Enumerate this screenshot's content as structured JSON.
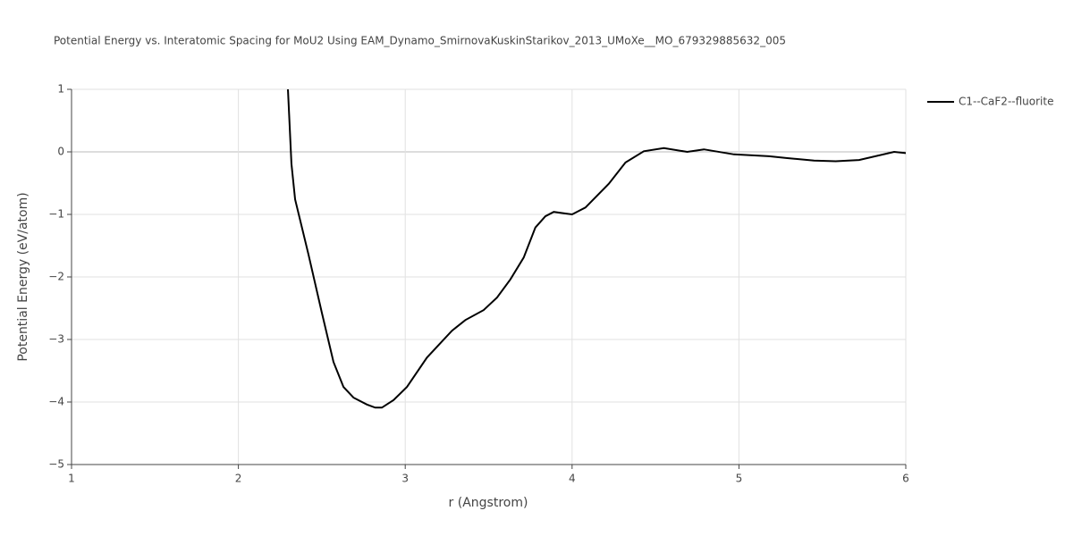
{
  "chart_data": {
    "type": "line",
    "title": "Potential Energy vs. Interatomic Spacing for MoU2 Using EAM_Dynamo_SmirnovaKuskinStarikov_2013_UMoXe__MO_679329885632_005",
    "x_label": "r (Angstrom)",
    "y_label": "Potential Energy (eV/atom)",
    "xlim": [
      1,
      6
    ],
    "ylim": [
      -5,
      1
    ],
    "xticks": [
      1,
      2,
      3,
      4,
      5,
      6
    ],
    "yticks": [
      {
        "value": -5,
        "label": "−5"
      },
      {
        "value": -4,
        "label": "−4"
      },
      {
        "value": -3,
        "label": "−3"
      },
      {
        "value": -2,
        "label": "−2"
      },
      {
        "value": -1,
        "label": "−1"
      },
      0,
      1
    ],
    "grid": true,
    "legend": "top-right",
    "x": [
      2.297,
      2.318,
      2.34,
      2.42,
      2.5,
      2.57,
      2.63,
      2.69,
      2.77,
      2.82,
      2.86,
      2.93,
      3.01,
      3.13,
      3.28,
      3.36,
      3.47,
      3.55,
      3.63,
      3.71,
      3.78,
      3.84,
      3.89,
      4.0,
      4.08,
      4.22,
      4.32,
      4.43,
      4.55,
      4.69,
      4.79,
      4.97,
      5.18,
      5.29,
      5.45,
      5.58,
      5.72,
      5.93,
      6.0
    ],
    "series": [
      {
        "name": "C1--CaF2--fluorite",
        "color": "#000000",
        "values": [
          1.0,
          -0.19,
          -0.76,
          -1.64,
          -2.57,
          -3.36,
          -3.76,
          -3.93,
          -4.04,
          -4.09,
          -4.09,
          -3.97,
          -3.76,
          -3.29,
          -2.86,
          -2.69,
          -2.53,
          -2.33,
          -2.04,
          -1.69,
          -1.21,
          -1.03,
          -0.96,
          -1.0,
          -0.89,
          -0.51,
          -0.17,
          0.01,
          0.06,
          0.0,
          0.04,
          -0.04,
          -0.07,
          -0.1,
          -0.14,
          -0.15,
          -0.13,
          0.0,
          -0.02
        ]
      }
    ]
  }
}
